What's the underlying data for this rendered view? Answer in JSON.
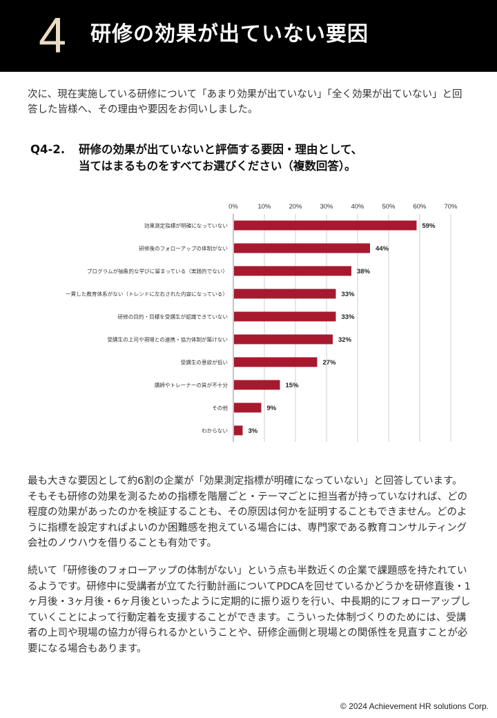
{
  "header": {
    "section_number": "4",
    "title": "研修の効果が出ていない要因"
  },
  "intro": "次に、現在実施している研修について「あまり効果が出ていない」「全く効果が出ていない」と回答した皆様へ、その理由や要因をお伺いしました。",
  "question": {
    "number": "Q4-2.",
    "line1": "研修の効果が出ていないと評価する要因・理由として、",
    "line2": "当てはまるものをすべてお選びください（複数回答）。"
  },
  "chart_data": {
    "type": "bar",
    "orientation": "horizontal",
    "categories": [
      "効果測定指標が明確になっていない",
      "研修後のフォローアップの体制がない",
      "プログラムが抽象的な学びに留まっている（実践的でない）",
      "一貫した教育体系がない（トレンドに左右された内容になっている）",
      "研修の目的・目標を受講生が認識できていない",
      "受講生の上司や現場との連携・協力体制が築けない",
      "受講生の意欲が低い",
      "講師やトレーナーの質が不十分",
      "その他",
      "わからない"
    ],
    "values": [
      59,
      44,
      38,
      33,
      33,
      32,
      27,
      15,
      9,
      3
    ],
    "value_labels": [
      "59%",
      "44%",
      "38%",
      "33%",
      "33%",
      "32%",
      "27%",
      "15%",
      "9%",
      "3%"
    ],
    "x_ticks": [
      "0%",
      "10%",
      "20%",
      "30%",
      "40%",
      "50%",
      "60%",
      "70%"
    ],
    "xlim": [
      0,
      70
    ],
    "grid": true,
    "bar_color": "#a6192e"
  },
  "paragraphs": [
    "最も大きな要因として約6割の企業が「効果測定指標が明確になっていない」と回答しています。そもそも研修の効果を測るための指標を階層ごと・テーマごとに担当者が持っていなければ、どの程度の効果があったのかを検証することも、その原因は何かを証明することもできません。どのように指標を設定すればよいのか困難感を抱えている場合には、専門家である教育コンサルティング会社のノウハウを借りることも有効です。",
    "続いて「研修後のフォローアップの体制がない」という点も半数近くの企業で課題感を持たれているようです。研修中に受講者が立てた行動計画についてPDCAを回せているかどうかを研修直後・1ヶ月後・3ヶ月後・6ヶ月後といったように定期的に振り返りを行い、中長期的にフォローアップしていくことによって行動定着を支援することができます。こういった体制づくりのためには、受講者の上司や現場の協力が得られるかということや、研修企画側と現場との関係性を見直すことが必要になる場合もあります。"
  ],
  "footer": "© 2024 Achievement HR solutions Corp."
}
